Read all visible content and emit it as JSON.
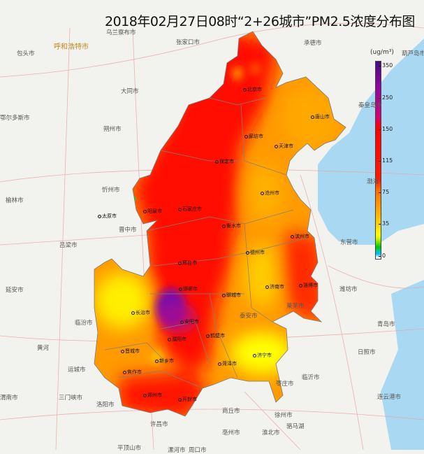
{
  "title": "2018年02月27日08时“2+26城市”PM2.5浓度分布图",
  "legend": {
    "unit": "(ug/m³)",
    "ticks": [
      "350",
      "250",
      "150",
      "115",
      "75",
      "35",
      "0"
    ],
    "colors": {
      "purple": "#4b0a85",
      "red": "#ff0000",
      "orange": "#ffa500",
      "yellow": "#ffff00",
      "green": "#00c800",
      "cyan": "#00b8ff"
    }
  },
  "cities_2_26": [
    "北京市",
    "天津市",
    "唐山市",
    "廊坊市",
    "保定市",
    "石家庄市",
    "衡水市",
    "沧州市",
    "阳泉市",
    "太原市",
    "邢台市",
    "德州市",
    "滨州市",
    "邯郸市",
    "聊城市",
    "长治市",
    "济南市",
    "淄博市",
    "安阳市",
    "晋城市",
    "鹤壁市",
    "濮阳市",
    "新乡市",
    "焦作市",
    "济宁市",
    "菏泽市",
    "郑州市",
    "开封市"
  ],
  "basemap_labels": [
    "呼和浩特市",
    "包头市",
    "乌兰察布市",
    "张家口市",
    "承德市",
    "葫芦岛市",
    "秦皇岛市",
    "大同市",
    "朔州市",
    "鄂尔多斯市",
    "忻州市",
    "晋中市",
    "吕梁市",
    "榆林市",
    "延安市",
    "临汾市",
    "运城市",
    "三门峡市",
    "洛阳市",
    "渭南市",
    "平顶山市",
    "许昌市",
    "漯河市",
    "周口市",
    "商丘市",
    "亳州市",
    "淮北市",
    "徐州市",
    "枣庄市",
    "临沂市",
    "泰安市",
    "莱芜市",
    "潍坊市",
    "东营市",
    "青岛市",
    "日照市",
    "连云港市",
    "渤海",
    "黄河",
    "骆马湖"
  ]
}
